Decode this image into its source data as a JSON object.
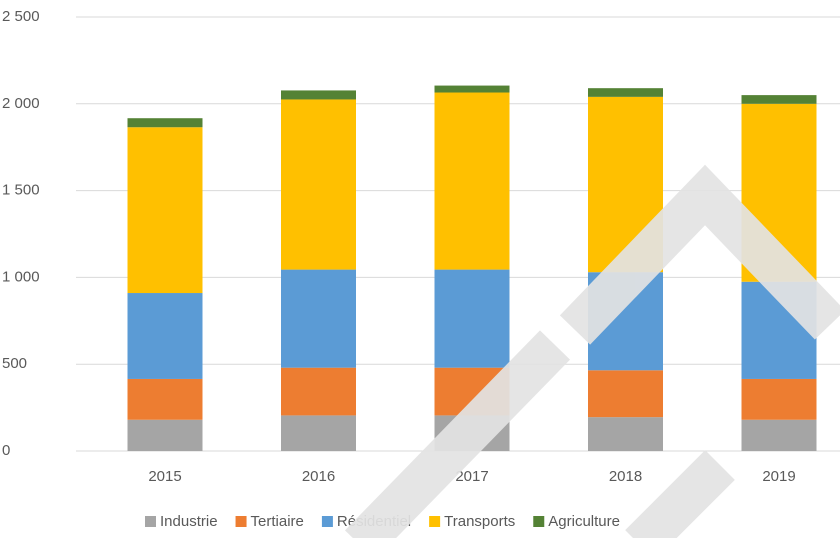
{
  "chart_data": {
    "type": "stacked_bar",
    "categories": [
      "2015",
      "2016",
      "2017",
      "2018",
      "2019"
    ],
    "series": [
      {
        "name": "Industrie",
        "color": "#a5a5a5",
        "values": [
          180,
          205,
          205,
          195,
          180
        ]
      },
      {
        "name": "Tertiaire",
        "color": "#ed7d31",
        "values": [
          235,
          275,
          275,
          270,
          235
        ]
      },
      {
        "name": "Résidentiel",
        "color": "#5b9bd5",
        "values": [
          495,
          565,
          565,
          565,
          560
        ]
      },
      {
        "name": "Transports",
        "color": "#ffc000",
        "values": [
          955,
          980,
          1020,
          1010,
          1025
        ]
      },
      {
        "name": "Agriculture",
        "color": "#548235",
        "values": [
          52,
          52,
          40,
          50,
          50
        ]
      }
    ],
    "ylim": [
      0,
      2500
    ],
    "yticks": [
      0,
      500,
      {
        "value": 1000,
        "label": "1 000"
      },
      {
        "value": 1500,
        "label": "1 500"
      },
      {
        "value": 2000,
        "label": "2 000"
      },
      {
        "value": 2500,
        "label": "2 500"
      }
    ],
    "grid": true,
    "legend": "bottom"
  }
}
